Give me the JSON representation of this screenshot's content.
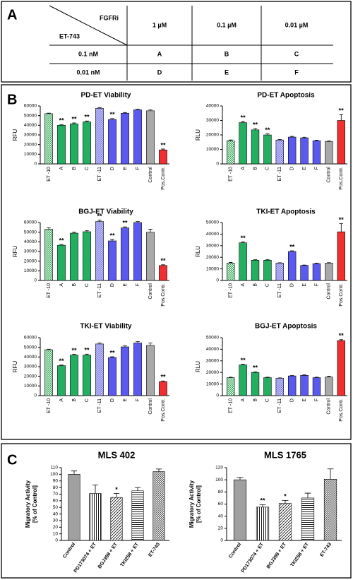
{
  "panel_labels": [
    "A",
    "B",
    "C"
  ],
  "table": {
    "corner_column_header": "FGFRi",
    "corner_row_header": "ET-743",
    "columns": [
      "1 µM",
      "0.1 µM",
      "0.01 µM"
    ],
    "rows": [
      [
        "0.1 nM",
        "A",
        "B",
        "C"
      ],
      [
        "0.01 nM",
        "D",
        "E",
        "F"
      ]
    ]
  },
  "chart_data": [
    {
      "type": "bar",
      "title": "PD-ET Viability",
      "ylabel": "RFU",
      "categories": [
        "ET -10",
        "A",
        "B",
        "C",
        "ET -11",
        "D",
        "E",
        "F",
        "Control",
        "Pos.Contr."
      ],
      "values": [
        52000,
        40000,
        41500,
        43500,
        57500,
        46000,
        52500,
        56000,
        55000,
        14500
      ],
      "errors": [
        600,
        800,
        900,
        900,
        800,
        1000,
        700,
        600,
        900,
        900
      ],
      "annotations": [
        null,
        "**",
        "**",
        "**",
        null,
        "**",
        null,
        null,
        null,
        "**"
      ],
      "colors": [
        "#22a34a",
        "#22b060",
        "#22b060",
        "#22b060",
        "#4a4ae0",
        "#5a5af0",
        "#5a5af0",
        "#5a5af0",
        "#a8a8a8",
        "#f03030"
      ],
      "patterns": [
        "checker",
        "solid",
        "solid",
        "solid",
        "checker",
        "solid",
        "solid",
        "solid",
        "solid",
        "solid"
      ],
      "ylim": [
        0,
        60000
      ],
      "yticks": [
        0,
        10000,
        20000,
        30000,
        40000,
        50000,
        60000
      ]
    },
    {
      "type": "bar",
      "title": "PD-ET Apoptosis",
      "ylabel": "RLU",
      "categories": [
        "ET -10",
        "A",
        "B",
        "C",
        "ET -11",
        "D",
        "E",
        "F",
        "Control",
        "Pos.Contr."
      ],
      "values": [
        16000,
        28500,
        23500,
        20000,
        16500,
        18500,
        18000,
        16000,
        15500,
        30000
      ],
      "errors": [
        500,
        800,
        900,
        700,
        400,
        500,
        400,
        400,
        400,
        4000
      ],
      "annotations": [
        null,
        "**",
        "**",
        "**",
        null,
        null,
        null,
        null,
        null,
        "**"
      ],
      "colors": [
        "#22a34a",
        "#22b060",
        "#22b060",
        "#22b060",
        "#4a4ae0",
        "#5a5af0",
        "#5a5af0",
        "#5a5af0",
        "#a8a8a8",
        "#f03030"
      ],
      "patterns": [
        "checker",
        "solid",
        "solid",
        "solid",
        "checker",
        "solid",
        "solid",
        "solid",
        "solid",
        "solid"
      ],
      "ylim": [
        0,
        40000
      ],
      "yticks": [
        0,
        10000,
        20000,
        30000,
        40000
      ]
    },
    {
      "type": "bar",
      "title": "BGJ-ET Viability",
      "ylabel": "RFU",
      "categories": [
        "ET -10",
        "A",
        "B",
        "C",
        "ET -11",
        "D",
        "E",
        "F",
        "Control",
        "Pos.Contr."
      ],
      "values": [
        53000,
        36500,
        49000,
        50500,
        61000,
        41000,
        54500,
        60000,
        50000,
        15500
      ],
      "errors": [
        1500,
        800,
        1000,
        1200,
        1500,
        1500,
        1000,
        1000,
        3000,
        800
      ],
      "annotations": [
        null,
        "**",
        null,
        null,
        "**",
        "**",
        "**",
        null,
        null,
        "**"
      ],
      "colors": [
        "#22a34a",
        "#22b060",
        "#22b060",
        "#22b060",
        "#4a4ae0",
        "#5a5af0",
        "#5a5af0",
        "#5a5af0",
        "#a8a8a8",
        "#f03030"
      ],
      "patterns": [
        "checker",
        "solid",
        "solid",
        "solid",
        "checker",
        "solid",
        "solid",
        "solid",
        "solid",
        "solid"
      ],
      "ylim": [
        0,
        60000
      ],
      "yticks": [
        0,
        10000,
        20000,
        30000,
        40000,
        50000,
        60000
      ]
    },
    {
      "type": "bar",
      "title": "TKI-ET Apoptosis",
      "ylabel": "RLU",
      "categories": [
        "ET -10",
        "A",
        "B",
        "C",
        "ET -11",
        "D",
        "E",
        "F",
        "Control",
        "Pos.Contr."
      ],
      "values": [
        15000,
        32500,
        17500,
        17500,
        15000,
        25000,
        13000,
        14500,
        15000,
        42000
      ],
      "errors": [
        600,
        700,
        400,
        400,
        300,
        600,
        300,
        500,
        400,
        7000
      ],
      "annotations": [
        null,
        "**",
        null,
        null,
        null,
        "**",
        null,
        null,
        null,
        "**"
      ],
      "colors": [
        "#22a34a",
        "#22b060",
        "#22b060",
        "#22b060",
        "#4a4ae0",
        "#5a5af0",
        "#5a5af0",
        "#5a5af0",
        "#a8a8a8",
        "#f03030"
      ],
      "patterns": [
        "checker",
        "solid",
        "solid",
        "solid",
        "checker",
        "solid",
        "solid",
        "solid",
        "solid",
        "solid"
      ],
      "ylim": [
        0,
        50000
      ],
      "yticks": [
        0,
        10000,
        20000,
        30000,
        40000,
        50000
      ]
    },
    {
      "type": "bar",
      "title": "TKI-ET Viability",
      "ylabel": "RFU",
      "categories": [
        "ET -10",
        "A",
        "B",
        "C",
        "ET -11",
        "D",
        "E",
        "F",
        "Control",
        "Pos.Contr."
      ],
      "values": [
        47500,
        31000,
        42000,
        42000,
        53500,
        39500,
        50500,
        54500,
        52000,
        14500
      ],
      "errors": [
        600,
        600,
        700,
        1000,
        1000,
        700,
        1000,
        1500,
        2500,
        700
      ],
      "annotations": [
        null,
        "**",
        "**",
        "**",
        null,
        "**",
        null,
        null,
        null,
        "**"
      ],
      "colors": [
        "#22a34a",
        "#22b060",
        "#22b060",
        "#22b060",
        "#4a4ae0",
        "#5a5af0",
        "#5a5af0",
        "#5a5af0",
        "#a8a8a8",
        "#f03030"
      ],
      "patterns": [
        "checker",
        "solid",
        "solid",
        "solid",
        "checker",
        "solid",
        "solid",
        "solid",
        "solid",
        "solid"
      ],
      "ylim": [
        0,
        60000
      ],
      "yticks": [
        0,
        10000,
        20000,
        30000,
        40000,
        50000,
        60000
      ]
    },
    {
      "type": "bar",
      "title": "BGJ-ET Apoptosis",
      "ylabel": "RLU",
      "categories": [
        "ET -10",
        "A",
        "B",
        "C",
        "ET -11",
        "D",
        "E",
        "F",
        "Control",
        "Pos.Contr."
      ],
      "values": [
        15500,
        26500,
        20000,
        15500,
        15000,
        17000,
        17500,
        15500,
        16000,
        47500
      ],
      "errors": [
        400,
        700,
        600,
        400,
        300,
        400,
        400,
        400,
        800,
        800
      ],
      "annotations": [
        null,
        "**",
        "**",
        null,
        null,
        null,
        null,
        null,
        null,
        "**"
      ],
      "colors": [
        "#22a34a",
        "#22b060",
        "#22b060",
        "#22b060",
        "#4a4ae0",
        "#5a5af0",
        "#5a5af0",
        "#5a5af0",
        "#a8a8a8",
        "#f03030"
      ],
      "patterns": [
        "checker",
        "solid",
        "solid",
        "solid",
        "checker",
        "solid",
        "solid",
        "solid",
        "solid",
        "solid"
      ],
      "ylim": [
        0,
        50000
      ],
      "yticks": [
        0,
        10000,
        20000,
        30000,
        40000,
        50000
      ]
    },
    {
      "type": "bar",
      "title": "MLS 402",
      "ylabel": [
        "Migratory Activity",
        "[% of Control]"
      ],
      "categories": [
        "Control",
        "PD173074 + ET",
        "BGJ398 + ET",
        "TKI258 + ET",
        "ET-743"
      ],
      "values": [
        100,
        71,
        65,
        75,
        104
      ],
      "errors": [
        5,
        13,
        6,
        5,
        4
      ],
      "annotations": [
        null,
        null,
        "*",
        null,
        null
      ],
      "colors": [
        "#a0a0a0",
        "#000000",
        "#000000",
        "#000000",
        "#555555"
      ],
      "patterns": [
        "solid",
        "vlines",
        "diagonal",
        "hlines",
        "checker"
      ],
      "ylim": [
        0,
        110
      ],
      "yticks": [
        0,
        10,
        20,
        30,
        40,
        50,
        60,
        70,
        80,
        90,
        100,
        110
      ]
    },
    {
      "type": "bar",
      "title": "MLS 1765",
      "ylabel": [
        "Migratory Activity",
        "[% of Control]"
      ],
      "categories": [
        "Control",
        "PD173074 + ET",
        "BGJ398 + ET",
        "TKI258 + ET",
        "ET-743"
      ],
      "values": [
        100,
        55,
        61,
        70,
        101
      ],
      "errors": [
        4,
        4,
        5,
        8,
        17
      ],
      "annotations": [
        null,
        "**",
        "*",
        null,
        null
      ],
      "colors": [
        "#a0a0a0",
        "#000000",
        "#000000",
        "#000000",
        "#555555"
      ],
      "patterns": [
        "solid",
        "vlines",
        "diagonal",
        "hlines",
        "checker"
      ],
      "ylim": [
        0,
        120
      ],
      "yticks": [
        0,
        20,
        40,
        60,
        80,
        100,
        120
      ]
    }
  ]
}
